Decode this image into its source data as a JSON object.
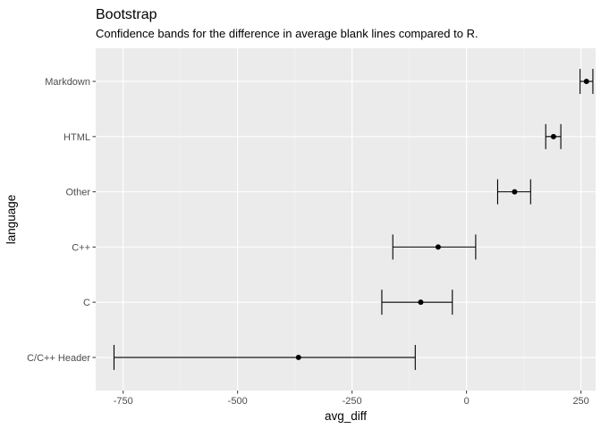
{
  "chart_data": {
    "type": "errorbar",
    "title": "Bootstrap",
    "subtitle": "Confidence bands for the difference in average blank lines compared to R.",
    "xlabel": "avg_diff",
    "ylabel": "language",
    "xlim": [
      -810,
      282
    ],
    "x_ticks": [
      -750,
      -500,
      -250,
      0,
      250
    ],
    "x_tick_labels": [
      "-750",
      "-500",
      "-250",
      "0",
      "250"
    ],
    "grid": true,
    "colors": {
      "panel": "#ebebeb",
      "grid_major": "#ffffff",
      "grid_minor": "#f5f5f5",
      "marks": "#000000"
    },
    "categories": [
      "Markdown",
      "HTML",
      "Other",
      "C++",
      "C",
      "C/C++ Header"
    ],
    "points": [
      {
        "language": "Markdown",
        "estimate": 262,
        "lower": 248,
        "upper": 276
      },
      {
        "language": "HTML",
        "estimate": 190,
        "lower": 173,
        "upper": 206
      },
      {
        "language": "Other",
        "estimate": 105,
        "lower": 68,
        "upper": 140
      },
      {
        "language": "C++",
        "estimate": -62,
        "lower": -161,
        "upper": 20
      },
      {
        "language": "C",
        "estimate": -100,
        "lower": -185,
        "upper": -31
      },
      {
        "language": "C/C++ Header",
        "estimate": -367,
        "lower": -770,
        "upper": -112
      }
    ]
  }
}
